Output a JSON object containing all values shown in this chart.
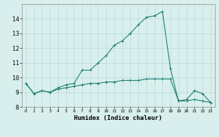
{
  "xlabel": "Humidex (Indice chaleur)",
  "x": [
    0,
    1,
    2,
    3,
    4,
    5,
    6,
    7,
    8,
    9,
    10,
    11,
    12,
    13,
    14,
    15,
    16,
    17,
    18,
    19,
    20,
    21,
    22,
    23
  ],
  "line1_y": [
    9.6,
    8.9,
    9.1,
    9.0,
    9.3,
    9.5,
    9.6,
    10.5,
    10.5,
    11.0,
    11.5,
    12.2,
    12.5,
    13.0,
    13.6,
    14.1,
    14.2,
    14.5,
    10.6,
    8.4,
    8.5,
    9.1,
    8.9,
    8.3
  ],
  "line2_y": [
    9.6,
    8.9,
    9.1,
    9.0,
    9.2,
    9.3,
    9.4,
    9.5,
    9.6,
    9.6,
    9.7,
    9.7,
    9.8,
    9.8,
    9.8,
    9.9,
    9.9,
    9.9,
    9.9,
    8.4,
    8.4,
    8.5,
    8.4,
    8.3
  ],
  "line_color": "#1a7a6e",
  "bg_color": "#d8efed",
  "grid_color": "#b8d8d5",
  "ylim": [
    8,
    15
  ],
  "yticks": [
    8,
    9,
    10,
    11,
    12,
    13,
    14
  ],
  "xticks": [
    0,
    1,
    2,
    3,
    4,
    5,
    6,
    7,
    8,
    9,
    10,
    11,
    12,
    13,
    14,
    15,
    16,
    17,
    18,
    19,
    20,
    21,
    22,
    23
  ],
  "xlabel_fontsize": 6.5,
  "ytick_fontsize": 6,
  "xtick_fontsize": 4.5
}
